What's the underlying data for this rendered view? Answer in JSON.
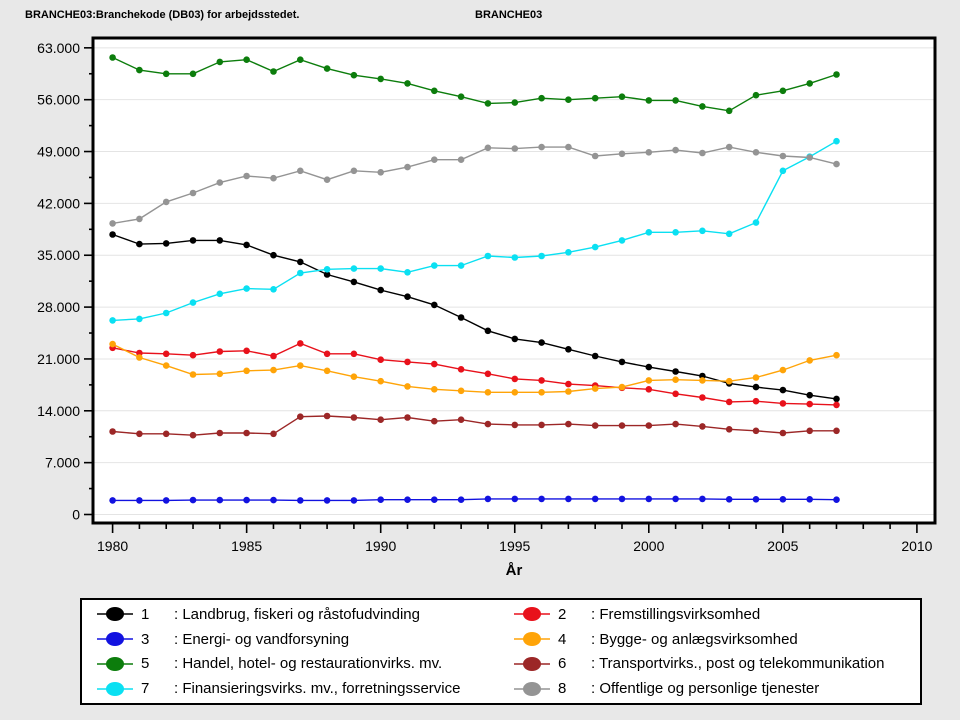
{
  "window": {
    "title_left": "BRANCHE03:Branchekode (DB03) for arbejdsstedet.",
    "title_right": "BRANCHE03"
  },
  "chart_data": {
    "type": "line",
    "title": "BRANCHE03:Branchekode (DB03) for arbejdsstedet.",
    "xlabel": "År",
    "ylabel": "",
    "xlim": [
      1979.3,
      2010.7
    ],
    "ylim": [
      0,
      63000
    ],
    "grid": "horizontal",
    "legend_position": "bottom",
    "x": [
      1980,
      1981,
      1982,
      1983,
      1984,
      1985,
      1986,
      1987,
      1988,
      1989,
      1990,
      1991,
      1992,
      1993,
      1994,
      1995,
      1996,
      1997,
      1998,
      1999,
      2000,
      2001,
      2002,
      2003,
      2004,
      2005,
      2006,
      2007
    ],
    "xticks": [
      {
        "v": 1980,
        "label": "1980"
      },
      {
        "v": 1985,
        "label": "1985"
      },
      {
        "v": 1990,
        "label": "1990"
      },
      {
        "v": 1995,
        "label": "1995"
      },
      {
        "v": 2000,
        "label": "2000"
      },
      {
        "v": 2005,
        "label": "2005"
      },
      {
        "v": 2010,
        "label": "2010"
      }
    ],
    "yticks": [
      {
        "v": 0,
        "label": "0"
      },
      {
        "v": 7000,
        "label": "7.000"
      },
      {
        "v": 14000,
        "label": "14.000"
      },
      {
        "v": 21000,
        "label": "21.000"
      },
      {
        "v": 28000,
        "label": "28.000"
      },
      {
        "v": 35000,
        "label": "35.000"
      },
      {
        "v": 42000,
        "label": "42.000"
      },
      {
        "v": 49000,
        "label": "49.000"
      },
      {
        "v": 56000,
        "label": "56.000"
      },
      {
        "v": 63000,
        "label": "63.000"
      }
    ],
    "series": [
      {
        "id": "1",
        "name": "Landbrug, fiskeri og råstofudvinding",
        "color": "#000000",
        "values": [
          37800,
          36500,
          36600,
          37000,
          37000,
          36400,
          35000,
          34100,
          32400,
          31400,
          30300,
          29400,
          28300,
          26600,
          24800,
          23700,
          23200,
          22300,
          21400,
          20600,
          19900,
          19300,
          18700,
          17700,
          17200,
          16800,
          16100,
          15600
        ]
      },
      {
        "id": "2",
        "name": "Fremstillingsvirksomhed",
        "color": "#e8111b",
        "values": [
          22500,
          21800,
          21700,
          21500,
          22000,
          22100,
          21400,
          23100,
          21700,
          21700,
          20900,
          20600,
          20300,
          19600,
          19000,
          18300,
          18100,
          17600,
          17400,
          17100,
          16900,
          16300,
          15800,
          15200,
          15300,
          15000,
          14900,
          14800
        ]
      },
      {
        "id": "3",
        "name": "Energi- og vandforsyning",
        "color": "#1212e0",
        "values": [
          1900,
          1900,
          1900,
          1950,
          1950,
          1950,
          1950,
          1900,
          1900,
          1900,
          2000,
          2000,
          2000,
          2000,
          2100,
          2100,
          2100,
          2100,
          2100,
          2100,
          2100,
          2100,
          2100,
          2050,
          2050,
          2050,
          2050,
          2000
        ]
      },
      {
        "id": "4",
        "name": "Bygge- og anlægsvirksomhed",
        "color": "#ffa408",
        "values": [
          23000,
          21200,
          20100,
          18900,
          19000,
          19400,
          19500,
          20100,
          19400,
          18600,
          18000,
          17300,
          16900,
          16700,
          16500,
          16500,
          16500,
          16600,
          17000,
          17200,
          18100,
          18200,
          18100,
          18000,
          18500,
          19500,
          20800,
          21500
        ]
      },
      {
        "id": "5",
        "name": "Handel, hotel- og restaurationvirks. mv.",
        "color": "#0c7d0c",
        "values": [
          61700,
          60000,
          59500,
          59500,
          61100,
          61400,
          59800,
          61400,
          60200,
          59300,
          58800,
          58200,
          57200,
          56400,
          55500,
          55600,
          56200,
          56000,
          56200,
          56400,
          55900,
          55900,
          55100,
          54500,
          56600,
          57200,
          58200,
          59400
        ]
      },
      {
        "id": "6",
        "name": "Transportvirks., post og telekommunikation",
        "color": "#9c2727",
        "values": [
          11200,
          10900,
          10900,
          10700,
          11000,
          11000,
          10900,
          13200,
          13300,
          13100,
          12800,
          13100,
          12600,
          12800,
          12200,
          12100,
          12100,
          12200,
          12000,
          12000,
          12000,
          12200,
          11900,
          11500,
          11300,
          11000,
          11300,
          11300
        ]
      },
      {
        "id": "7",
        "name": "Finansieringsvirks. mv., forretningsservice",
        "color": "#0ae0f2",
        "values": [
          26200,
          26400,
          27200,
          28600,
          29800,
          30500,
          30400,
          32600,
          33100,
          33200,
          33200,
          32700,
          33600,
          33600,
          34900,
          34700,
          34900,
          35400,
          36100,
          37000,
          38100,
          38100,
          38300,
          37900,
          39400,
          46400,
          48300,
          50400
        ]
      },
      {
        "id": "8",
        "name": "Offentlige og personlige tjenester",
        "color": "#949494",
        "values": [
          39300,
          39900,
          42200,
          43400,
          44800,
          45700,
          45400,
          46400,
          45200,
          46400,
          46200,
          46900,
          47900,
          47900,
          49500,
          49400,
          49600,
          49600,
          48400,
          48700,
          48900,
          49200,
          48800,
          49600,
          48900,
          48400,
          48200,
          47300
        ]
      }
    ]
  },
  "legend": {
    "items": [
      {
        "num": "1",
        "label": ": Landbrug, fiskeri og råstofudvinding",
        "color": "#000000"
      },
      {
        "num": "3",
        "label": ": Energi- og vandforsyning",
        "color": "#1212e0"
      },
      {
        "num": "5",
        "label": ": Handel, hotel- og restaurationvirks. mv.",
        "color": "#0c7d0c"
      },
      {
        "num": "7",
        "label": ": Finansieringsvirks. mv., forretningsservice",
        "color": "#0ae0f2"
      },
      {
        "num": "2",
        "label": ": Fremstillingsvirksomhed",
        "color": "#e8111b"
      },
      {
        "num": "4",
        "label": ": Bygge- og anlægsvirksomhed",
        "color": "#ffa408"
      },
      {
        "num": "6",
        "label": ": Transportvirks., post og telekommunikation",
        "color": "#9c2727"
      },
      {
        "num": "8",
        "label": ": Offentlige og personlige tjenester",
        "color": "#949494"
      }
    ]
  }
}
